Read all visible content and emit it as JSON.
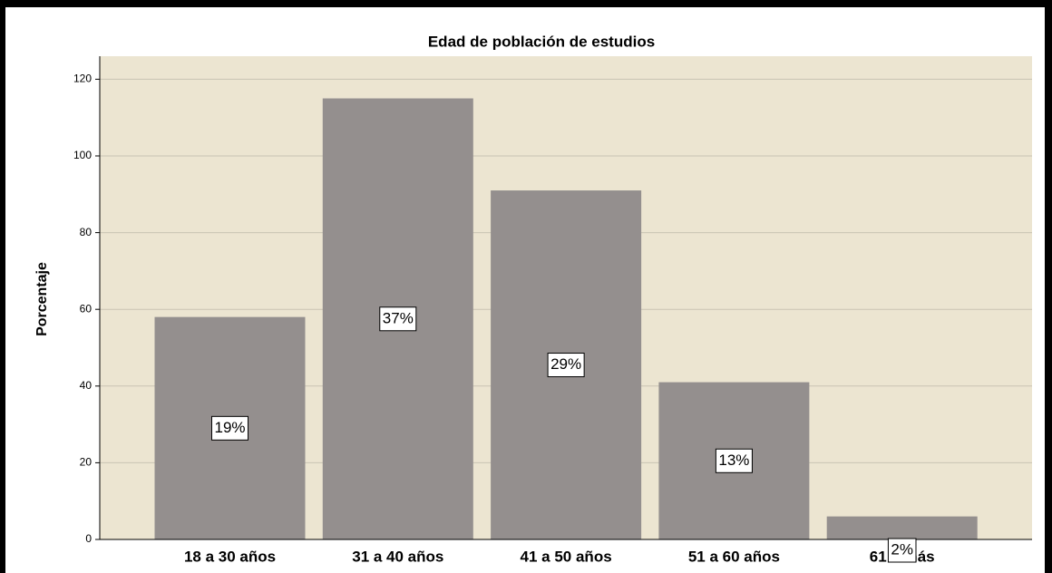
{
  "chart_data": {
    "type": "bar",
    "title": "Edad de población de estudios",
    "y_label": "Porcentaje",
    "categories": [
      "18 a 30 años",
      "31 a 40 años",
      "41 a 50 años",
      "51 a 60 años",
      "61 a más"
    ],
    "values": [
      58,
      115,
      91,
      41,
      6
    ],
    "bar_labels": [
      "19%",
      "37%",
      "29%",
      "13%",
      "2%"
    ],
    "color": "#948f8e",
    "background": "#ece5d1",
    "ylim": [
      0,
      126
    ],
    "yticks": [
      0,
      20,
      40,
      60,
      80,
      100,
      120
    ],
    "grid": true
  }
}
